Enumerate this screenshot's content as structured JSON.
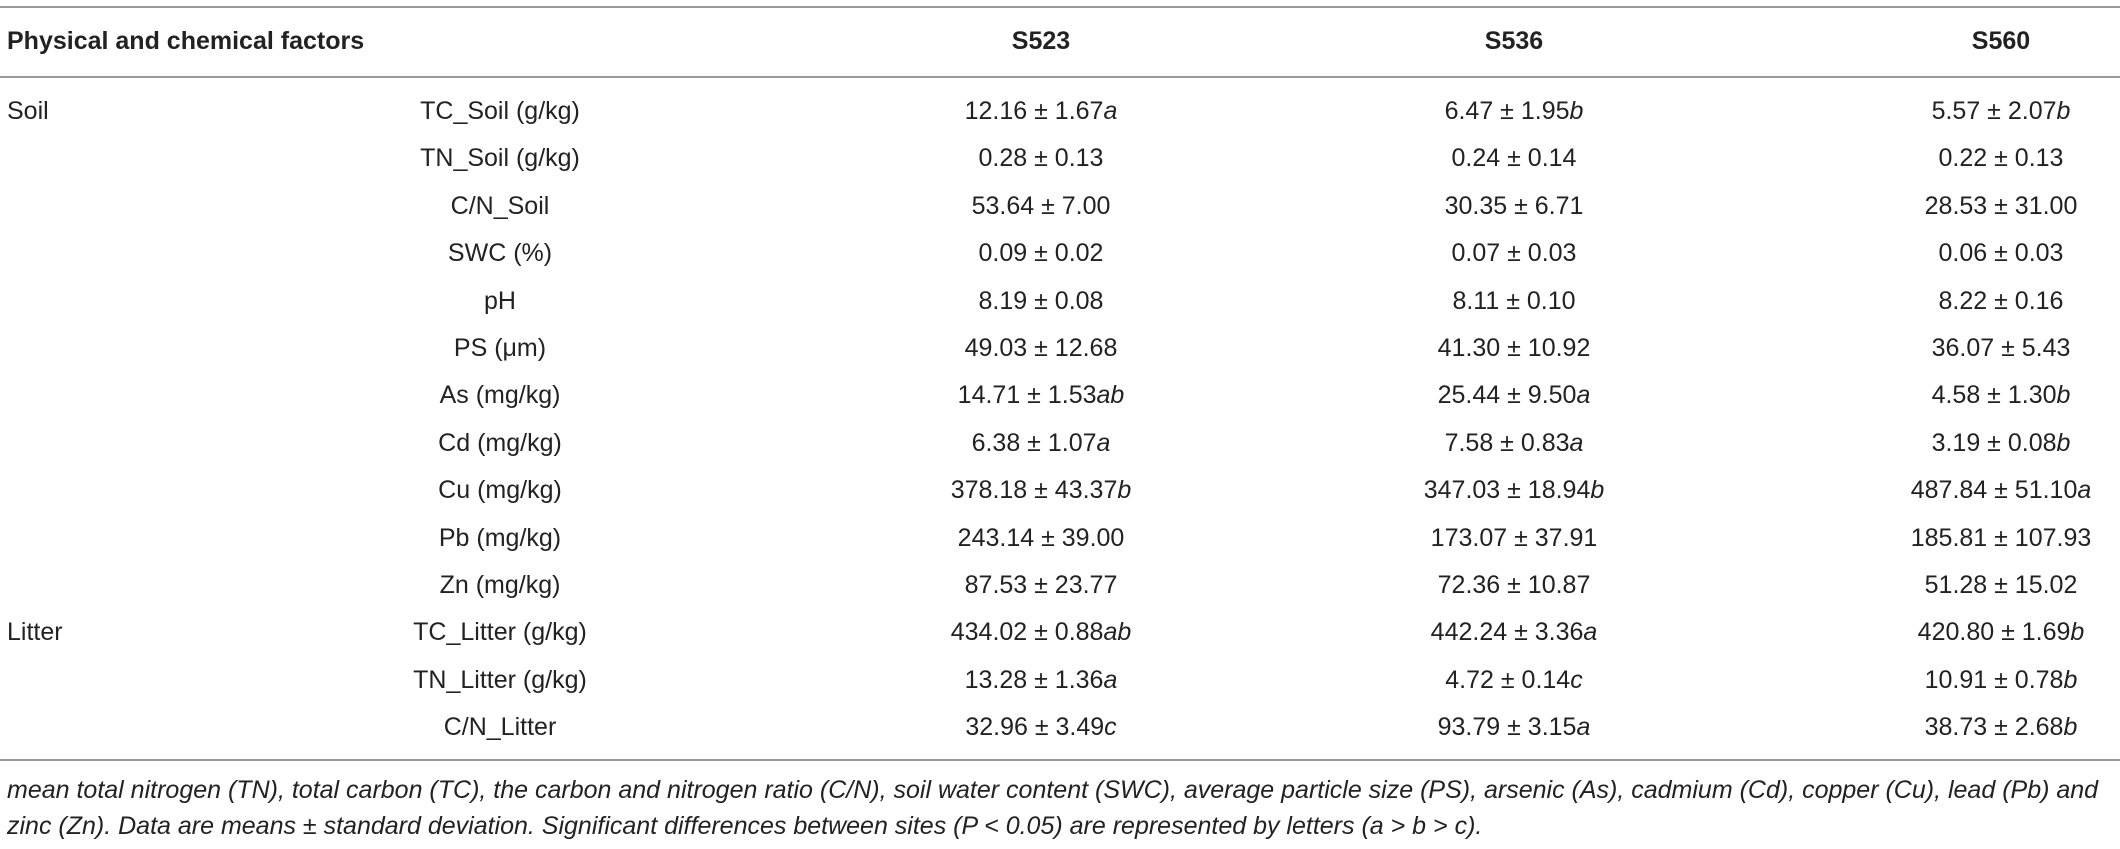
{
  "table": {
    "header": [
      "Physical and chemical factors",
      "S523",
      "S536",
      "S560"
    ],
    "rows": [
      {
        "group": "Soil",
        "factor": "TC_Soil (g/kg)",
        "cells": [
          {
            "value": "12.16 ± 1.67",
            "letter": "a"
          },
          {
            "value": "6.47 ± 1.95",
            "letter": "b"
          },
          {
            "value": "5.57 ± 2.07",
            "letter": "b"
          }
        ]
      },
      {
        "factor": "TN_Soil (g/kg)",
        "cells": [
          {
            "value": "0.28 ± 0.13"
          },
          {
            "value": "0.24 ± 0.14"
          },
          {
            "value": "0.22 ± 0.13"
          }
        ]
      },
      {
        "factor": "C/N_Soil",
        "cells": [
          {
            "value": "53.64 ± 7.00"
          },
          {
            "value": "30.35 ± 6.71"
          },
          {
            "value": "28.53 ± 31.00"
          }
        ]
      },
      {
        "factor": "SWC (%)",
        "cells": [
          {
            "value": "0.09 ± 0.02"
          },
          {
            "value": "0.07 ± 0.03"
          },
          {
            "value": "0.06 ± 0.03"
          }
        ]
      },
      {
        "factor": "pH",
        "cells": [
          {
            "value": "8.19 ± 0.08"
          },
          {
            "value": "8.11 ± 0.10"
          },
          {
            "value": "8.22 ± 0.16"
          }
        ]
      },
      {
        "factor": "PS (μm)",
        "cells": [
          {
            "value": "49.03 ± 12.68"
          },
          {
            "value": "41.30 ± 10.92"
          },
          {
            "value": "36.07 ± 5.43"
          }
        ]
      },
      {
        "factor": "As (mg/kg)",
        "cells": [
          {
            "value": "14.71 ± 1.53",
            "letter": "ab"
          },
          {
            "value": "25.44 ± 9.50",
            "letter": "a"
          },
          {
            "value": "4.58 ± 1.30",
            "letter": "b"
          }
        ]
      },
      {
        "factor": "Cd (mg/kg)",
        "cells": [
          {
            "value": "6.38 ± 1.07",
            "letter": "a"
          },
          {
            "value": "7.58 ± 0.83",
            "letter": "a"
          },
          {
            "value": "3.19 ± 0.08",
            "letter": "b"
          }
        ]
      },
      {
        "factor": "Cu (mg/kg)",
        "cells": [
          {
            "value": "378.18 ± 43.37",
            "letter": "b"
          },
          {
            "value": "347.03 ± 18.94",
            "letter": "b"
          },
          {
            "value": "487.84 ± 51.10",
            "letter": "a"
          }
        ]
      },
      {
        "factor": "Pb (mg/kg)",
        "cells": [
          {
            "value": "243.14 ± 39.00"
          },
          {
            "value": "173.07 ± 37.91"
          },
          {
            "value": "185.81 ± 107.93"
          }
        ]
      },
      {
        "factor": "Zn (mg/kg)",
        "cells": [
          {
            "value": "87.53 ± 23.77"
          },
          {
            "value": "72.36 ± 10.87"
          },
          {
            "value": "51.28 ± 15.02"
          }
        ]
      },
      {
        "group": "Litter",
        "factor": "TC_Litter (g/kg)",
        "cells": [
          {
            "value": "434.02 ± 0.88",
            "letter": "ab"
          },
          {
            "value": "442.24 ± 3.36",
            "letter": "a"
          },
          {
            "value": "420.80 ± 1.69",
            "letter": "b"
          }
        ]
      },
      {
        "factor": "TN_Litter (g/kg)",
        "cells": [
          {
            "value": "13.28 ± 1.36",
            "letter": "a"
          },
          {
            "value": "4.72 ± 0.14",
            "letter": "c"
          },
          {
            "value": "10.91 ± 0.78",
            "letter": "b"
          }
        ]
      },
      {
        "factor": "C/N_Litter",
        "cells": [
          {
            "value": "32.96 ± 3.49",
            "letter": "c"
          },
          {
            "value": "93.79 ± 3.15",
            "letter": "a"
          },
          {
            "value": "38.73 ± 2.68",
            "letter": "b"
          }
        ]
      }
    ]
  },
  "footnote": "mean total nitrogen (TN), total carbon (TC), the carbon and nitrogen ratio (C/N), soil water content (SWC), average particle size (PS), arsenic (As), cadmium (Cd), copper (Cu), lead (Pb) and zinc (Zn). Data are means ± standard deviation. Significant differences between sites (P < 0.05) are represented by letters (a > b > c)."
}
